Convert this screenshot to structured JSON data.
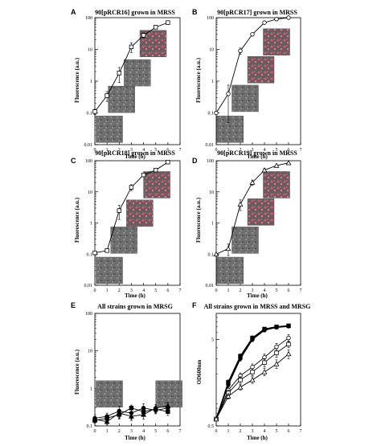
{
  "chart_data": [
    {
      "id": "A",
      "type": "line",
      "title": "90[pRCR16] grown in MRSS",
      "xlabel": "Time (h)",
      "ylabel": "Fluorescence (a.u.)",
      "xlim": [
        0,
        7
      ],
      "ylim": [
        0.01,
        100
      ],
      "yscale": "log",
      "xticks": [
        "0",
        "1",
        "2",
        "3",
        "4",
        "5",
        "6",
        "7"
      ],
      "yticks": [
        "0.01",
        "0.1",
        "1",
        "10",
        "100"
      ],
      "series": [
        {
          "marker": "square-open",
          "x": [
            0,
            1,
            2,
            3,
            4,
            5,
            6
          ],
          "y": [
            0.11,
            0.35,
            1.8,
            12,
            28,
            50,
            70
          ],
          "err": [
            0.02,
            0.12,
            0.9,
            4,
            5,
            0,
            0
          ]
        }
      ],
      "insets": [
        {
          "x": 0.1,
          "yTop": 0.08,
          "tint": "gray"
        },
        {
          "x": 1.1,
          "yTop": 0.7,
          "tint": "gray"
        },
        {
          "x": 2.4,
          "yTop": 4.8,
          "tint": "gray"
        },
        {
          "x": 3.7,
          "yTop": 40,
          "tint": "red"
        }
      ]
    },
    {
      "id": "B",
      "type": "line",
      "title": "90[pRCR17] grown in MRSS",
      "xlabel": "Time (h)",
      "ylabel": "Fluorescence (a.u.)",
      "xlim": [
        0,
        7
      ],
      "ylim": [
        0.01,
        100
      ],
      "yscale": "log",
      "xticks": [
        "0",
        "1",
        "2",
        "3",
        "4",
        "5",
        "6",
        "7"
      ],
      "yticks": [
        "0.01",
        "0.1",
        "1",
        "10",
        "100"
      ],
      "series": [
        {
          "marker": "circle-open",
          "x": [
            0,
            1,
            2,
            3,
            4,
            5,
            6
          ],
          "y": [
            0.1,
            0.4,
            9,
            30,
            70,
            90,
            100
          ],
          "err": [
            0,
            0.35,
            2,
            0,
            0,
            0,
            0
          ]
        }
      ],
      "insets": [
        {
          "x": 0.05,
          "yTop": 0.08,
          "tint": "gray"
        },
        {
          "x": 1.3,
          "yTop": 0.75,
          "tint": "gray"
        },
        {
          "x": 2.6,
          "yTop": 6,
          "tint": "red"
        },
        {
          "x": 3.9,
          "yTop": 45,
          "tint": "red"
        }
      ]
    },
    {
      "id": "C",
      "type": "line",
      "title": "90[pRCR18] grown in MRSS",
      "xlabel": "Time (h)",
      "ylabel": "Fluorescence (a.u.)",
      "xlim": [
        0,
        7
      ],
      "ylim": [
        0.01,
        100
      ],
      "yscale": "log",
      "xticks": [
        "0",
        "1",
        "2",
        "3",
        "4",
        "5",
        "6",
        "7"
      ],
      "yticks": [
        "0.01",
        "0.1",
        "1",
        "10",
        "100"
      ],
      "series": [
        {
          "marker": "square-open",
          "x": [
            0,
            1,
            2,
            3,
            4,
            5,
            6
          ],
          "y": [
            0.11,
            0.13,
            2.5,
            14,
            35,
            50,
            90
          ],
          "err": [
            0,
            0,
            1.2,
            3,
            0,
            5,
            0
          ]
        }
      ],
      "insets": [
        {
          "x": 0.1,
          "yTop": 0.08,
          "tint": "gray"
        },
        {
          "x": 1.3,
          "yTop": 0.75,
          "tint": "gray"
        },
        {
          "x": 2.6,
          "yTop": 5.5,
          "tint": "red"
        },
        {
          "x": 4.0,
          "yTop": 45,
          "tint": "red"
        }
      ]
    },
    {
      "id": "D",
      "type": "line",
      "title": "90[pRCR19] grown in MRSS",
      "xlabel": "Time (h)",
      "ylabel": "Fluorescence (a.u.)",
      "xlim": [
        0,
        7
      ],
      "ylim": [
        0.01,
        100
      ],
      "yscale": "log",
      "xticks": [
        "0",
        "1",
        "2",
        "3",
        "4",
        "5",
        "6",
        "7"
      ],
      "yticks": [
        "0.01",
        "0.1",
        "1",
        "10",
        "100"
      ],
      "series": [
        {
          "marker": "triangle-open",
          "x": [
            0,
            1,
            2,
            3,
            4,
            5,
            6
          ],
          "y": [
            0.1,
            0.15,
            4,
            20,
            50,
            70,
            85
          ],
          "err": [
            0,
            0.06,
            1.5,
            4,
            6,
            0,
            0
          ]
        }
      ],
      "insets": [
        {
          "x": 0.05,
          "yTop": 0.08,
          "tint": "gray"
        },
        {
          "x": 1.3,
          "yTop": 0.75,
          "tint": "gray"
        },
        {
          "x": 2.6,
          "yTop": 6,
          "tint": "red"
        },
        {
          "x": 3.9,
          "yTop": 45,
          "tint": "red"
        }
      ]
    },
    {
      "id": "E",
      "type": "line",
      "title": "All strains grown in MRSG",
      "xlabel": "Time (h)",
      "ylabel": "Fluorescence (a.u.)",
      "xlim": [
        0,
        7
      ],
      "ylim": [
        0.1,
        100
      ],
      "yscale": "log",
      "xticks": [
        "0",
        "1",
        "2",
        "3",
        "4",
        "5",
        "6",
        "7"
      ],
      "yticks": [
        "0.1",
        "1",
        "10",
        "100"
      ],
      "series": [
        {
          "marker": "circle-filled",
          "x": [
            0,
            1,
            2,
            3,
            4,
            5,
            6
          ],
          "y": [
            0.16,
            0.18,
            0.25,
            0.22,
            0.3,
            0.26,
            0.3
          ],
          "err": [
            0.02,
            0.04,
            0.08,
            0.07,
            0.09,
            0.05,
            0.08
          ]
        },
        {
          "marker": "square-filled",
          "x": [
            0,
            1,
            2,
            3,
            4,
            5,
            6
          ],
          "y": [
            0.14,
            0.16,
            0.2,
            0.3,
            0.24,
            0.28,
            0.24
          ],
          "err": [
            0.02,
            0.03,
            0.05,
            0.06,
            0.05,
            0.06,
            0.05
          ]
        },
        {
          "marker": "triangle-filled",
          "x": [
            0,
            1,
            2,
            3,
            4,
            5,
            6
          ],
          "y": [
            0.15,
            0.13,
            0.22,
            0.18,
            0.2,
            0.3,
            0.34
          ],
          "err": [
            0.02,
            0.02,
            0.06,
            0.04,
            0.05,
            0.07,
            0.09
          ]
        }
      ],
      "insets": [
        {
          "x": 0.1,
          "yTop": 1.6,
          "tint": "gray"
        },
        {
          "x": 5.0,
          "yTop": 1.6,
          "tint": "gray"
        }
      ]
    },
    {
      "id": "F",
      "type": "line",
      "title": "All strains grown in MRSS and MRSG",
      "xlabel": "Time (h)",
      "ylabel": "OD600nm",
      "xlim": [
        0,
        7
      ],
      "ylim": [
        0.5,
        10
      ],
      "yscale": "log",
      "xticks": [
        "0",
        "1",
        "2",
        "3",
        "4",
        "5",
        "6",
        "7"
      ],
      "yticks": [
        "0.5",
        "5"
      ],
      "series": [
        {
          "marker": "square-filled",
          "x": [
            0,
            1,
            2,
            3,
            4,
            5,
            6
          ],
          "y": [
            0.6,
            1.6,
            3.2,
            5.2,
            6.6,
            7.0,
            7.2
          ],
          "err": [
            0,
            0.1,
            0.2,
            0.3,
            0.3,
            0.3,
            0.3
          ]
        },
        {
          "marker": "circle-filled",
          "x": [
            0,
            1,
            2,
            3,
            4,
            5,
            6
          ],
          "y": [
            0.6,
            1.5,
            3.0,
            5.0,
            6.4,
            6.9,
            7.1
          ],
          "err": [
            0,
            0.1,
            0.2,
            0.3,
            0.3,
            0.3,
            0.3
          ]
        },
        {
          "marker": "circle-open",
          "x": [
            0,
            1,
            2,
            3,
            4,
            5,
            6
          ],
          "y": [
            0.6,
            1.3,
            1.9,
            2.4,
            3.1,
            4.1,
            5.2
          ],
          "err": [
            0,
            0.1,
            0.15,
            0.2,
            0.3,
            0.4,
            0.5
          ]
        },
        {
          "marker": "square-open",
          "x": [
            0,
            1,
            2,
            3,
            4,
            5,
            6
          ],
          "y": [
            0.6,
            1.2,
            1.7,
            2.1,
            2.7,
            3.5,
            4.4
          ],
          "err": [
            0,
            0.1,
            0.15,
            0.2,
            0.3,
            0.4,
            0.4
          ]
        },
        {
          "marker": "triangle-open",
          "x": [
            0,
            1,
            2,
            3,
            4,
            5,
            6
          ],
          "y": [
            0.6,
            1.1,
            1.4,
            1.7,
            2.1,
            2.6,
            3.4
          ],
          "err": [
            0,
            0.08,
            0.1,
            0.15,
            0.2,
            0.3,
            0.4
          ]
        }
      ],
      "insets": []
    }
  ]
}
